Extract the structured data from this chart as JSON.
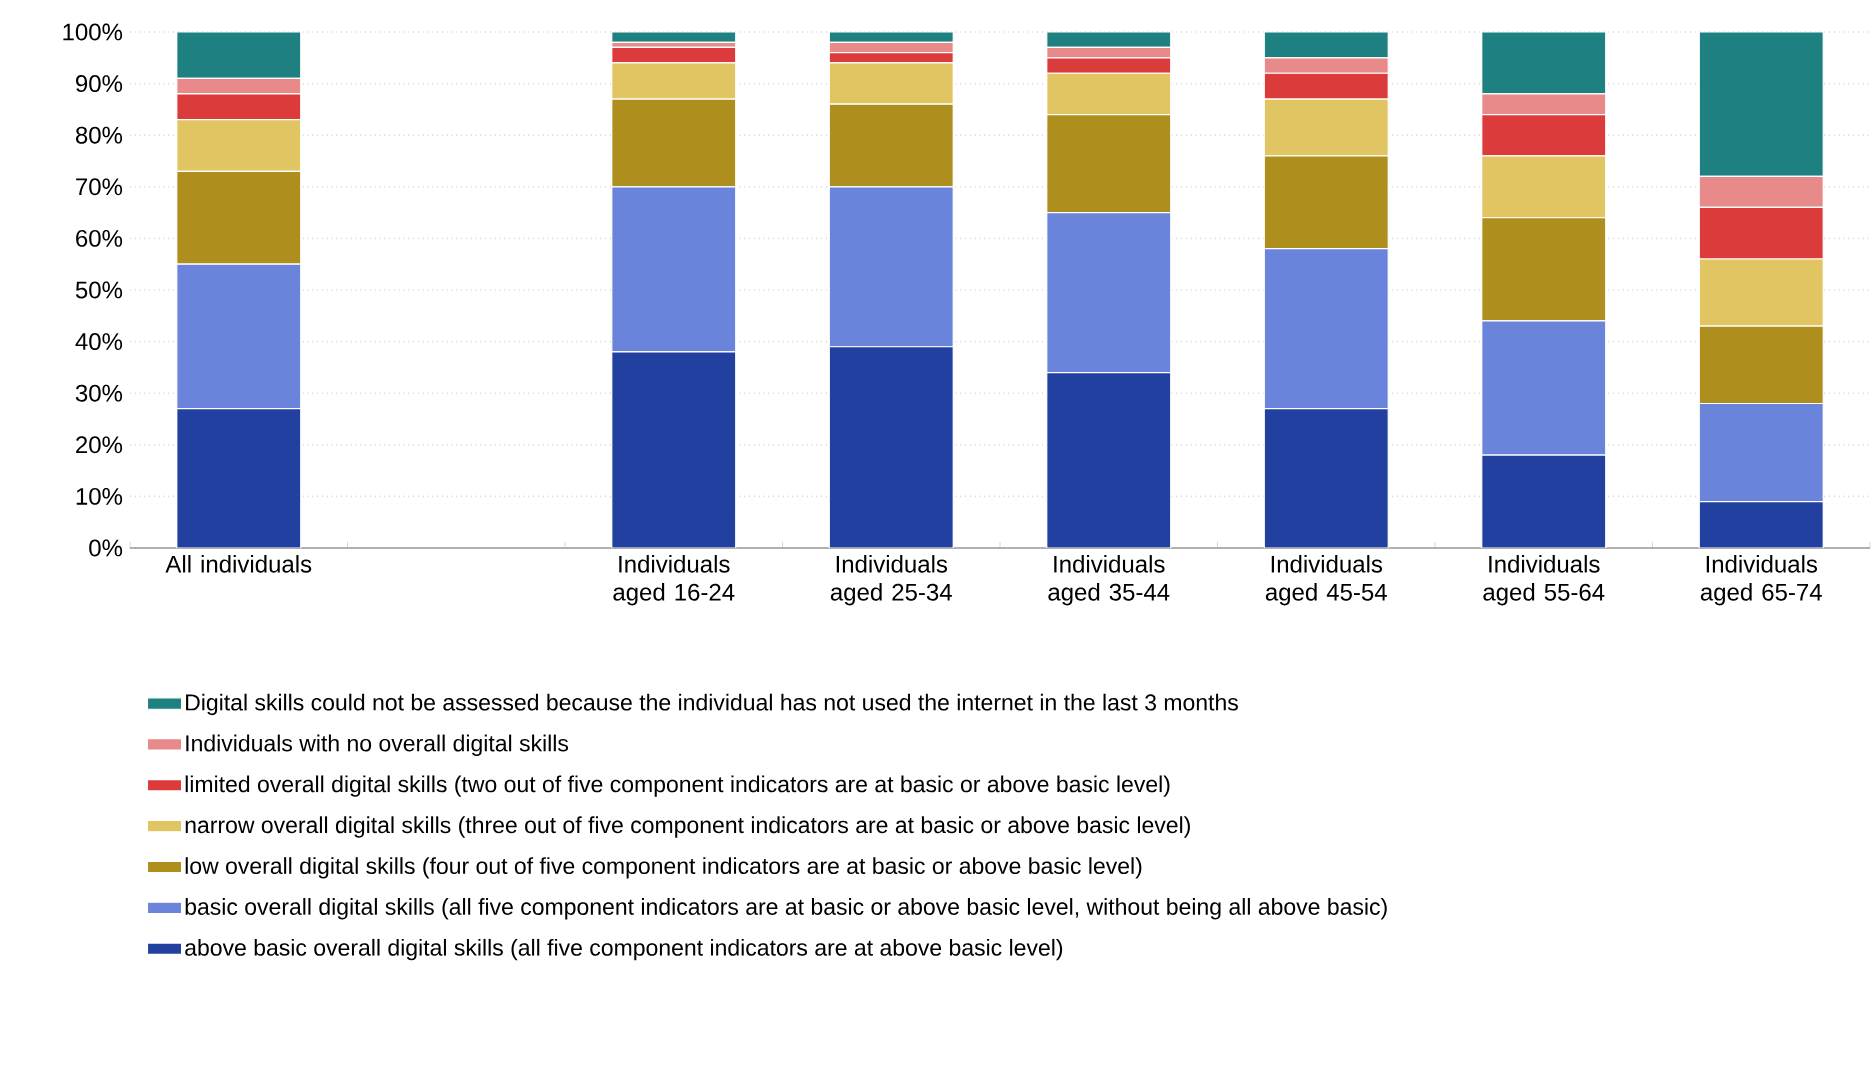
{
  "chart_data": {
    "type": "bar",
    "stacked": true,
    "grid": "y",
    "legend": "bottom",
    "categories": [
      "All individuals",
      null,
      "Individuals aged 16-24",
      "Individuals aged 25-34",
      "Individuals aged 35-44",
      "Individuals aged 45-54",
      "Individuals aged 55-64",
      "Individuals aged 65-74"
    ],
    "ylim": [
      0,
      100
    ],
    "yticks": [
      {
        "value": 0,
        "label": "0%"
      },
      {
        "value": 10,
        "label": "10%"
      },
      {
        "value": 20,
        "label": "20%"
      },
      {
        "value": 30,
        "label": "30%"
      },
      {
        "value": 40,
        "label": "40%"
      },
      {
        "value": 50,
        "label": "50%"
      },
      {
        "value": 60,
        "label": "60%"
      },
      {
        "value": 70,
        "label": "70%"
      },
      {
        "value": 80,
        "label": "80%"
      },
      {
        "value": 90,
        "label": "90%"
      },
      {
        "value": 100,
        "label": "100%"
      }
    ],
    "series": [
      {
        "name": "above basic overall digital skills (all five component indicators are at above basic level)",
        "color": "#2240a0",
        "values": [
          27,
          null,
          38,
          39,
          34,
          27,
          18,
          9
        ]
      },
      {
        "name": "basic overall digital skills (all five component indicators are at basic or above basic level, without being all above basic)",
        "color": "#6a84dc",
        "values": [
          28,
          null,
          32,
          31,
          31,
          31,
          26,
          19
        ]
      },
      {
        "name": "low overall digital skills (four out of five component indicators are at basic or above basic level)",
        "color": "#ae8e1c",
        "values": [
          18,
          null,
          17,
          16,
          19,
          18,
          20,
          15
        ]
      },
      {
        "name": "narrow overall digital skills (three out of five component indicators are at basic or above basic level)",
        "color": "#e0c562",
        "values": [
          10,
          null,
          7,
          8,
          8,
          11,
          12,
          13
        ]
      },
      {
        "name": "limited overall digital skills (two out of five component indicators are at basic or above basic level)",
        "color": "#dc3b3b",
        "values": [
          5,
          null,
          3,
          2,
          3,
          5,
          8,
          10
        ]
      },
      {
        "name": "Individuals with no overall digital skills",
        "color": "#e88a8a",
        "values": [
          3,
          null,
          1,
          2,
          2,
          3,
          4,
          6
        ]
      },
      {
        "name": "Digital skills could not be assessed because the individual has not used the internet in the last 3 months",
        "color": "#1e8080",
        "values": [
          9,
          null,
          2,
          2,
          3,
          5,
          12,
          28
        ]
      }
    ]
  }
}
